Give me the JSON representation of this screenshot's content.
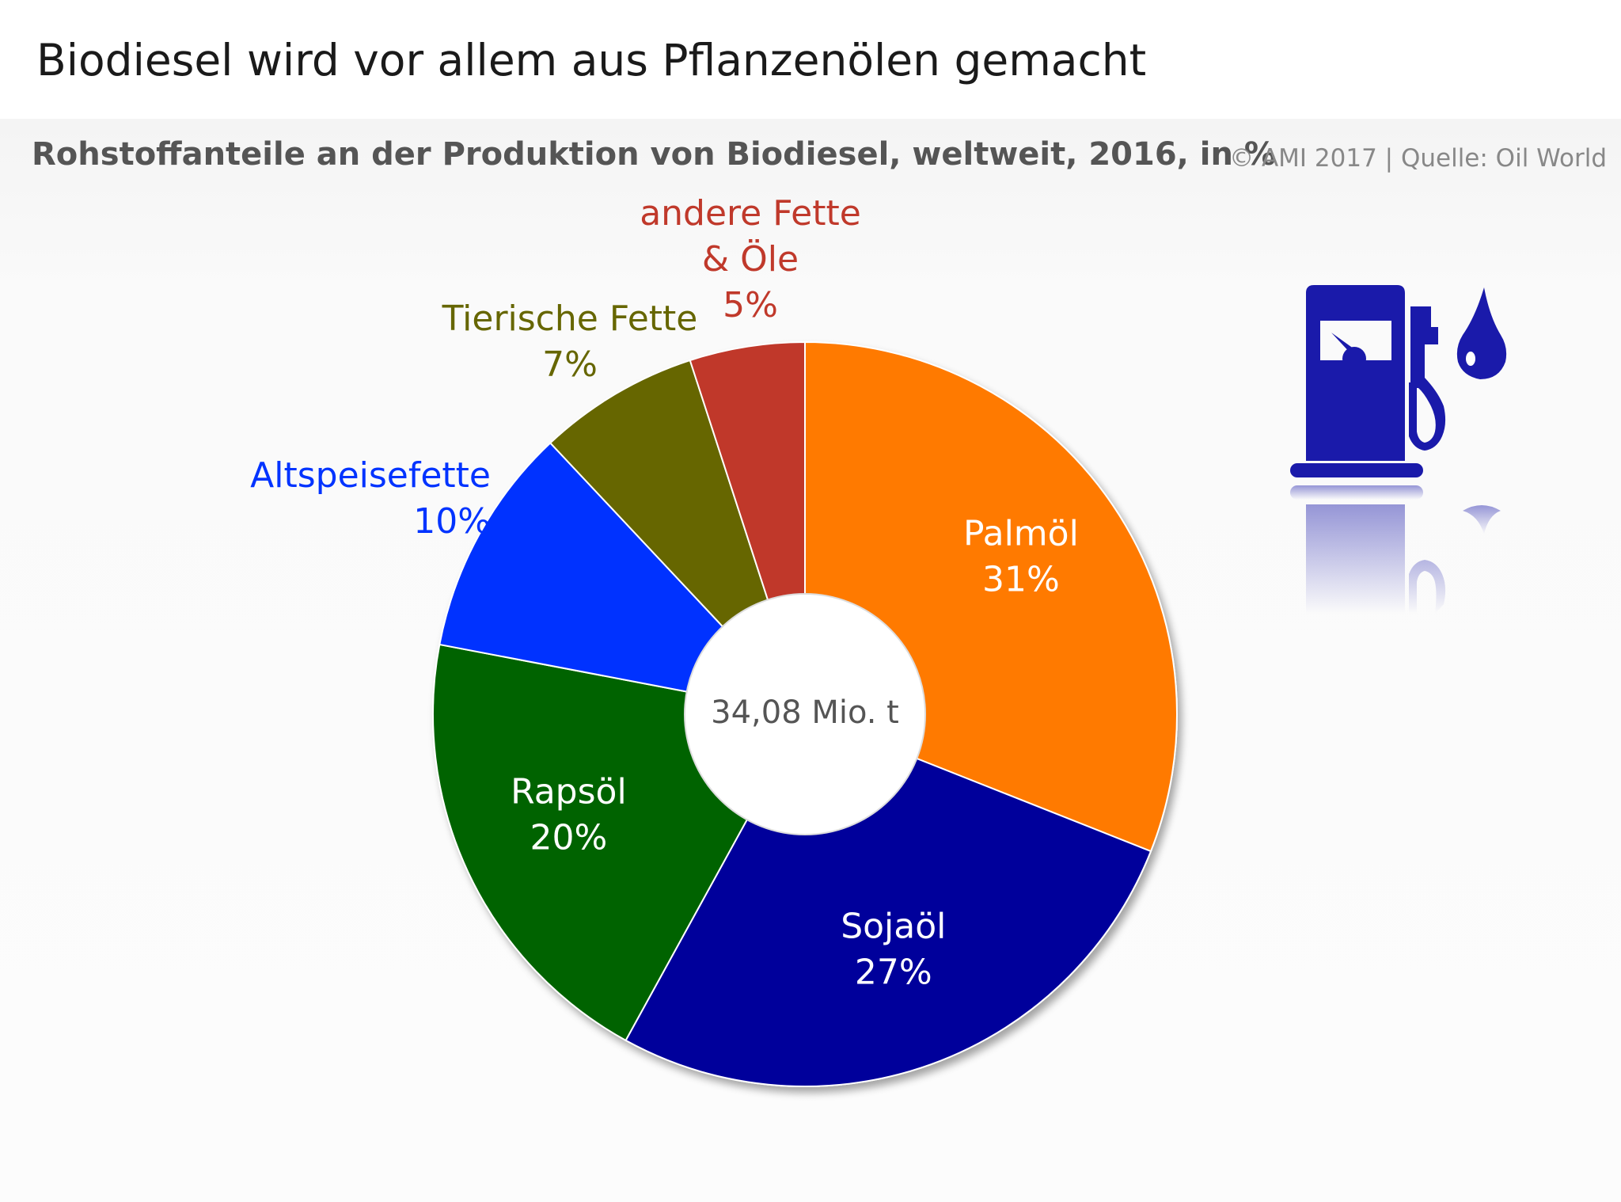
{
  "header": {
    "title": "Biodiesel wird vor allem aus Pflanzenölen gemacht",
    "subtitle": "Rohstoffanteile an der Produktion von Biodiesel, weltweit, 2016, in %",
    "source": "© AMI 2017 | Quelle: Oil World"
  },
  "chart_data": {
    "type": "pie",
    "variant": "donut",
    "center_label": "34,08 Mio. t",
    "slices": [
      {
        "name": "Palmöl",
        "value": 31,
        "value_label": "31%",
        "color": "#FF7A00",
        "label_color": "#FFFFFF",
        "label_placement": "inside",
        "name_lines": [
          "Palmöl"
        ]
      },
      {
        "name": "Sojaöl",
        "value": 27,
        "value_label": "27%",
        "color": "#00009B",
        "label_color": "#FFFFFF",
        "label_placement": "inside",
        "name_lines": [
          "Sojaöl"
        ]
      },
      {
        "name": "Rapsöl",
        "value": 20,
        "value_label": "20%",
        "color": "#006400",
        "label_color": "#FFFFFF",
        "label_placement": "inside",
        "name_lines": [
          "Rapsöl"
        ]
      },
      {
        "name": "Altspeisefette",
        "value": 10,
        "value_label": "10%",
        "color": "#0033FF",
        "label_color": "#0033FF",
        "label_placement": "outside",
        "name_lines": [
          "Altspeisefette"
        ]
      },
      {
        "name": "Tierische Fette",
        "value": 7,
        "value_label": "7%",
        "color": "#666600",
        "label_color": "#666600",
        "label_placement": "outside",
        "name_lines": [
          "Tierische Fette"
        ]
      },
      {
        "name": "andere Fette & Öle",
        "value": 5,
        "value_label": "5%",
        "color": "#C0392B",
        "label_color": "#C0392B",
        "label_placement": "outside",
        "name_lines": [
          "andere Fette",
          "& Öle"
        ]
      }
    ],
    "start": "12 o'clock",
    "direction": "clockwise"
  },
  "decoration": {
    "icon": "fuel-pump-with-droplet-icon",
    "icon_color": "#1A1AAA"
  }
}
